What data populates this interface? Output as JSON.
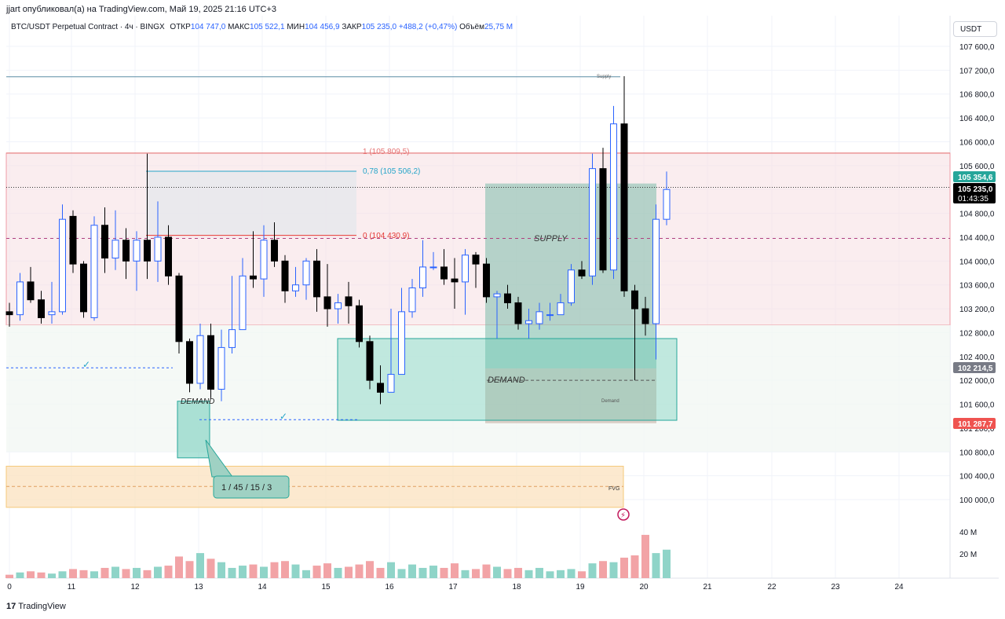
{
  "header": {
    "published": "jjart опубликовал(а) на TradingView.com, Май 19, 2025 21:16 UTC+3"
  },
  "legend": {
    "symbol": "BTC/USDT Perpetual Contract · 4ч · BINGX",
    "open_label": "ОТКР",
    "open_value": "104 747,0",
    "high_label": "МАКС",
    "high_value": "105 522,1",
    "low_label": "МИН",
    "low_value": "104 456,9",
    "close_label": "ЗАКР",
    "close_value": "105 235,0",
    "change_value": "+488,2 (+0,47%)",
    "volume_label": "Объём",
    "volume_value": "25,75 M"
  },
  "currency_button": "USDT",
  "footer": {
    "brand": "TradingView",
    "logo": "17"
  },
  "colors": {
    "up_candle": "#ffffff",
    "up_border": "#2962ff",
    "down_candle": "#000000",
    "vol_up": "#8fd4c8",
    "vol_down": "#f2a3a6",
    "supply_zone": "#f7e1e4",
    "demand_zone": "#5fc8b1",
    "fvg_zone": "#fbe4c3",
    "last_price_bg": "#000000",
    "box_price_bg": "#26a69a",
    "low_price_bg": "#ef5350"
  },
  "chart_data": {
    "type": "candlestick",
    "y_range": [
      99800,
      107800
    ],
    "y_ticks": [
      "107 600,0",
      "107 200,0",
      "106 800,0",
      "106 400,0",
      "106 000,0",
      "105 600,0",
      "105 200,0",
      "104 800,0",
      "104 400,0",
      "104 000,0",
      "103 600,0",
      "103 200,0",
      "102 800,0",
      "102 400,0",
      "102 000,0",
      "101 600,0",
      "101 200,0",
      "100 800,0",
      "100 400,0",
      "100 000,0"
    ],
    "x_ticks": [
      "0",
      "11",
      "12",
      "13",
      "14",
      "15",
      "16",
      "17",
      "18",
      "19",
      "20",
      "21",
      "22",
      "23",
      "24"
    ],
    "volume_ticks": [
      "40 M",
      "20 M"
    ],
    "price_labels": {
      "box_top": "105 354,6",
      "last_price": "105 235,0",
      "countdown": "01:43:35",
      "marker": "102 214,5",
      "low_box": "101 287,7"
    },
    "fib_levels": [
      {
        "label": "1 (105 809,5)",
        "price": 105809.5
      },
      {
        "label": "0,78 (105 506,2)",
        "price": 105506.2
      },
      {
        "label": "0 (104 430,9)",
        "price": 104430.9
      }
    ],
    "zones": {
      "supply_label": "Supply",
      "supply_label_2": "SUPPLY",
      "demand_label": "DEMAND",
      "demand_label_2": "DEMAND",
      "demand_small_label": "Demand",
      "fvg_label": "FVG",
      "callout": "1 / 45 / 15 / 3"
    },
    "candles": [
      [
        103150,
        103100,
        103300,
        102900
      ],
      [
        103100,
        103650,
        103800,
        103000
      ],
      [
        103650,
        103350,
        103900,
        103300
      ],
      [
        103350,
        103050,
        103500,
        102950
      ],
      [
        103100,
        103150,
        103650,
        102950
      ],
      [
        103150,
        104700,
        104950,
        103100
      ],
      [
        104750,
        103950,
        104850,
        103800
      ],
      [
        103950,
        103150,
        104000,
        103050
      ],
      [
        103050,
        104600,
        104750,
        103000
      ],
      [
        104600,
        104050,
        104900,
        103800
      ],
      [
        104050,
        104350,
        104850,
        103850
      ],
      [
        104350,
        104000,
        104550,
        103700
      ],
      [
        104000,
        104350,
        104500,
        103500
      ],
      [
        104350,
        104000,
        105800,
        103700
      ],
      [
        104000,
        104400,
        105000,
        103650
      ],
      [
        104400,
        103750,
        104600,
        103600
      ],
      [
        103750,
        102650,
        103800,
        102450
      ],
      [
        102650,
        101950,
        102700,
        101800
      ],
      [
        101950,
        102750,
        102950,
        101850
      ],
      [
        102750,
        101850,
        102950,
        101700
      ],
      [
        101850,
        102550,
        102850,
        101650
      ],
      [
        102550,
        102850,
        103750,
        102450
      ],
      [
        102850,
        103750,
        104050,
        102900
      ],
      [
        103750,
        103700,
        104500,
        103550
      ],
      [
        103700,
        104350,
        104600,
        103400
      ],
      [
        104350,
        104000,
        104650,
        103900
      ],
      [
        104000,
        103500,
        104100,
        103300
      ],
      [
        103500,
        103600,
        103900,
        103400
      ],
      [
        103600,
        104000,
        104050,
        103350
      ],
      [
        104000,
        103400,
        104200,
        103150
      ],
      [
        103400,
        103200,
        103950,
        102900
      ],
      [
        103200,
        103300,
        103450,
        102950
      ],
      [
        103400,
        103250,
        103650,
        102950
      ],
      [
        103250,
        102650,
        103350,
        102550
      ],
      [
        102650,
        102000,
        102750,
        101850
      ],
      [
        101950,
        101800,
        102250,
        101600
      ],
      [
        101800,
        102100,
        103200,
        101800
      ],
      [
        102100,
        103150,
        103550,
        102800
      ],
      [
        103150,
        103550,
        103700,
        103050
      ],
      [
        103550,
        103900,
        104350,
        103400
      ],
      [
        103900,
        103900,
        104150,
        103850
      ],
      [
        103900,
        103700,
        104200,
        103600
      ],
      [
        103700,
        103650,
        104050,
        103200
      ],
      [
        103650,
        104100,
        104200,
        103100
      ],
      [
        104100,
        103950,
        104150,
        103550
      ],
      [
        103950,
        103400,
        104050,
        103300
      ],
      [
        103400,
        103450,
        103500,
        102700
      ],
      [
        103450,
        103300,
        103600,
        103200
      ],
      [
        103300,
        102950,
        103400,
        102850
      ],
      [
        102950,
        103000,
        103200,
        102700
      ],
      [
        102950,
        103150,
        103300,
        102850
      ],
      [
        103100,
        103100,
        103300,
        103000
      ],
      [
        103100,
        103300,
        103450,
        103200
      ],
      [
        103300,
        103850,
        103950,
        103250
      ],
      [
        103850,
        103750,
        104000,
        103700
      ],
      [
        103750,
        105550,
        105800,
        103600
      ],
      [
        105550,
        103850,
        105900,
        103800
      ],
      [
        103850,
        106300,
        106600,
        103700
      ],
      [
        106300,
        103500,
        107100,
        103400
      ],
      [
        103500,
        103200,
        103600,
        102000
      ],
      [
        103200,
        102950,
        103400,
        102750
      ],
      [
        102950,
        104700,
        104950,
        102350
      ],
      [
        104700,
        105200,
        105500,
        104600
      ]
    ],
    "volumes": [
      3,
      5,
      6,
      5,
      4,
      6,
      8,
      7,
      6,
      9,
      10,
      8,
      9,
      7,
      10,
      11,
      19,
      15,
      22,
      17,
      14,
      9,
      11,
      12,
      10,
      14,
      15,
      12,
      7,
      11,
      13,
      9,
      10,
      12,
      15,
      9,
      14,
      8,
      12,
      9,
      11,
      9,
      13,
      7,
      8,
      12,
      10,
      8,
      9,
      7,
      9,
      6,
      7,
      8,
      6,
      13,
      15,
      14,
      18,
      20,
      38,
      22,
      25
    ]
  }
}
